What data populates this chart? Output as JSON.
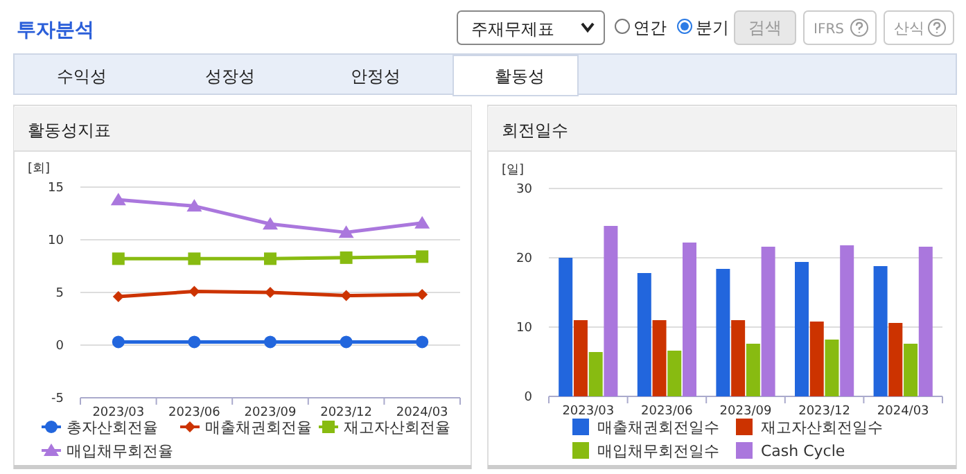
{
  "chart_data": [
    {
      "type": "other",
      "title": "투자분석",
      "annotations": [
        "주재무제표",
        "연간",
        "분기",
        "검색",
        "IFRS",
        "산식",
        "수익성",
        "성장성",
        "안정성",
        "활동성"
      ]
    },
    {
      "type": "line",
      "title": "활동성지표",
      "ylabel": "[회]",
      "categories": [
        "2023/03",
        "2023/06",
        "2023/09",
        "2023/12",
        "2024/03"
      ],
      "ylim": [
        -5,
        15
      ],
      "yticks": [
        -5,
        0,
        5,
        10,
        15
      ],
      "grid": "y",
      "legend": "bottom",
      "series": [
        {
          "name": "총자산회전율",
          "color": "#2266dd",
          "marker": "circle",
          "values": [
            0.3,
            0.3,
            0.3,
            0.3,
            0.3
          ]
        },
        {
          "name": "매출채권회전율",
          "color": "#cc3300",
          "marker": "diamond",
          "values": [
            4.6,
            5.1,
            5.0,
            4.7,
            4.8
          ]
        },
        {
          "name": "재고자산회전율",
          "color": "#88bb11",
          "marker": "square",
          "values": [
            8.2,
            8.2,
            8.2,
            8.3,
            8.4
          ]
        },
        {
          "name": "매입채무회전율",
          "color": "#aa77dd",
          "marker": "triangle",
          "values": [
            13.8,
            13.2,
            11.5,
            10.7,
            11.6
          ]
        }
      ]
    },
    {
      "type": "bar",
      "title": "회전일수",
      "ylabel": "[일]",
      "categories": [
        "2023/03",
        "2023/06",
        "2023/09",
        "2023/12",
        "2024/03"
      ],
      "ylim": [
        0,
        30
      ],
      "yticks": [
        0,
        10,
        20,
        30
      ],
      "grid": "y",
      "legend": "bottom",
      "series": [
        {
          "name": "매출채권회전일수",
          "color": "#2266dd",
          "values": [
            20.0,
            17.8,
            18.4,
            19.4,
            18.8
          ]
        },
        {
          "name": "재고자산회전일수",
          "color": "#cc3300",
          "values": [
            11.0,
            11.0,
            11.0,
            10.8,
            10.6
          ]
        },
        {
          "name": "매입채무회전일수",
          "color": "#88bb11",
          "values": [
            6.4,
            6.6,
            7.6,
            8.2,
            7.6
          ]
        },
        {
          "name": "Cash Cycle",
          "color": "#aa77dd",
          "values": [
            24.6,
            22.2,
            21.6,
            21.8,
            21.6
          ]
        }
      ]
    }
  ]
}
